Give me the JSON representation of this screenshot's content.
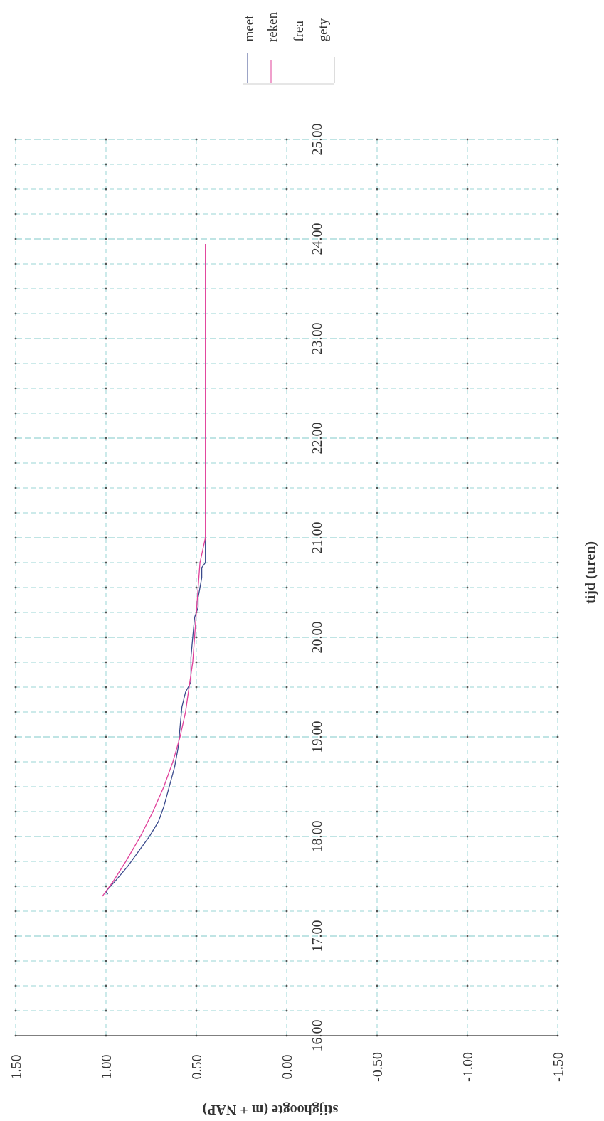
{
  "chart_data": {
    "type": "line",
    "orientation": "rotated 90° clockwise (x axis vertical, top to bottom; y axis horizontal)",
    "xlabel": "tijd (uren)",
    "ylabel": "stijghoogte (m + NAP)",
    "xlim": [
      16.0,
      25.0
    ],
    "ylim": [
      -1.5,
      1.5
    ],
    "x_ticks": [
      "16.00",
      "17.00",
      "18.00",
      "19.00",
      "20.00",
      "21.00",
      "22.00",
      "23.00",
      "24.00",
      "25.00"
    ],
    "y_ticks": [
      "1.50",
      "1.00",
      "0.50",
      "0.00",
      "-0.50",
      "-1.00",
      "-1.50"
    ],
    "grid": true,
    "legend_position": "top-right",
    "legend": [
      "meet",
      "reken",
      "frea",
      "gety"
    ],
    "series": [
      {
        "name": "meet",
        "color": "#3a4a8c",
        "x": [
          17.42,
          17.45,
          17.55,
          17.7,
          17.85,
          18.0,
          18.15,
          18.3,
          18.5,
          18.7,
          18.9,
          19.1,
          19.3,
          19.45,
          19.55,
          19.8,
          20.0,
          20.2,
          20.3,
          20.4,
          20.5,
          20.6,
          20.7,
          20.75,
          20.8,
          20.9,
          21.0
        ],
        "y": [
          0.99,
          1.0,
          0.95,
          0.88,
          0.82,
          0.76,
          0.71,
          0.68,
          0.65,
          0.62,
          0.6,
          0.59,
          0.58,
          0.56,
          0.53,
          0.53,
          0.52,
          0.51,
          0.49,
          0.49,
          0.48,
          0.47,
          0.47,
          0.45,
          0.45,
          0.45,
          0.45
        ]
      },
      {
        "name": "reken",
        "color": "#e0409a",
        "x": [
          17.4,
          17.55,
          17.75,
          18.0,
          18.25,
          18.5,
          18.75,
          19.0,
          19.25,
          19.5,
          19.75,
          20.0,
          20.25,
          20.5,
          20.75,
          21.0,
          21.5,
          22.0,
          22.5,
          23.0,
          23.5,
          23.95
        ],
        "y": [
          1.02,
          0.96,
          0.89,
          0.81,
          0.74,
          0.68,
          0.63,
          0.59,
          0.56,
          0.54,
          0.52,
          0.51,
          0.5,
          0.49,
          0.48,
          0.45,
          0.45,
          0.45,
          0.45,
          0.45,
          0.45,
          0.45
        ]
      }
    ],
    "colors": {
      "grid": "#9ad6d6",
      "axis": "#333333",
      "dots": "#555555"
    }
  }
}
